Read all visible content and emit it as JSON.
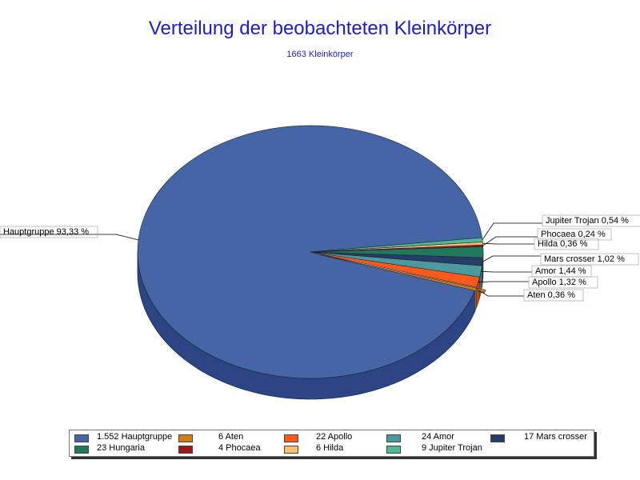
{
  "chart_data": {
    "type": "pie",
    "title": "Verteilung der beobachteten Kleinkörper",
    "subtitle": "1663 Kleinkörper",
    "slices": [
      {
        "name": "Hauptgruppe",
        "count": 1552,
        "count_text": "1.552",
        "percent_text": "93,33 %",
        "color": "#4565a5",
        "side": "#2c4585"
      },
      {
        "name": "Aten",
        "count": 6,
        "count_text": "6",
        "percent_text": "0,36 %",
        "color": "#d07c15",
        "side": "#d07c15"
      },
      {
        "name": "Apollo",
        "count": 22,
        "count_text": "22",
        "percent_text": "1,32 %",
        "color": "#ff5a1a",
        "side": "#c84010"
      },
      {
        "name": "Amor",
        "count": 24,
        "count_text": "24",
        "percent_text": "1,44 %",
        "color": "#4a9aa0",
        "side": "#357478"
      },
      {
        "name": "Mars crosser",
        "count": 17,
        "count_text": "17",
        "percent_text": "1,02 %",
        "color": "#283c68",
        "side": "#1c2c4c"
      },
      {
        "name": "Hungaria",
        "count": 23,
        "count_text": "23",
        "percent_text": "",
        "color": "#1e7a5a",
        "side": "#155a42"
      },
      {
        "name": "Phocaea",
        "count": 4,
        "count_text": "4",
        "percent_text": "0,24 %",
        "color": "#a01818",
        "side": "#781010"
      },
      {
        "name": "Hilda",
        "count": 6,
        "count_text": "6",
        "percent_text": "0,36 %",
        "color": "#f8c070",
        "side": "#c89040"
      },
      {
        "name": "Jupiter Trojan",
        "count": 9,
        "count_text": "9",
        "percent_text": "0,54 %",
        "color": "#50b898",
        "side": "#3a8a72"
      }
    ],
    "legend_position": "bottom"
  }
}
